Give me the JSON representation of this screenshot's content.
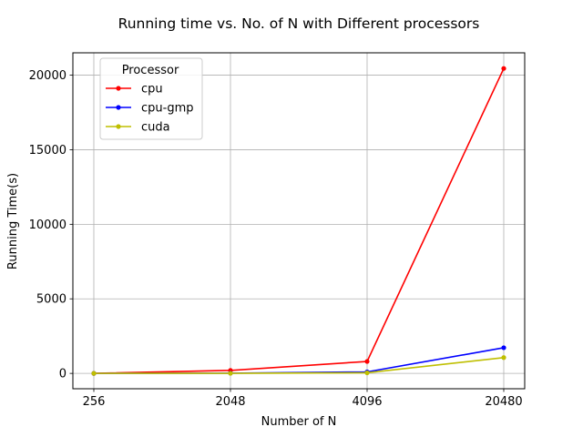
{
  "chart_data": {
    "type": "line",
    "title": "Running time vs. No. of N with Different processors",
    "xlabel": "Number of N",
    "ylabel": "Running Time(s)",
    "categories": [
      "256",
      "2048",
      "4096",
      "20480"
    ],
    "ylim": [
      -1030,
      21500
    ],
    "yticks": [
      0,
      5000,
      10000,
      15000,
      20000
    ],
    "grid": true,
    "legend": {
      "title": "Processor",
      "placement": "upper-left"
    },
    "series": [
      {
        "name": "cpu",
        "color": "#ff0000",
        "values": [
          2,
          200,
          800,
          20450
        ]
      },
      {
        "name": "cpu-gmp",
        "color": "#0000ff",
        "values": [
          1,
          15,
          100,
          1720
        ]
      },
      {
        "name": "cuda",
        "color": "#bfbf00",
        "values": [
          1,
          5,
          40,
          1060
        ]
      }
    ]
  }
}
